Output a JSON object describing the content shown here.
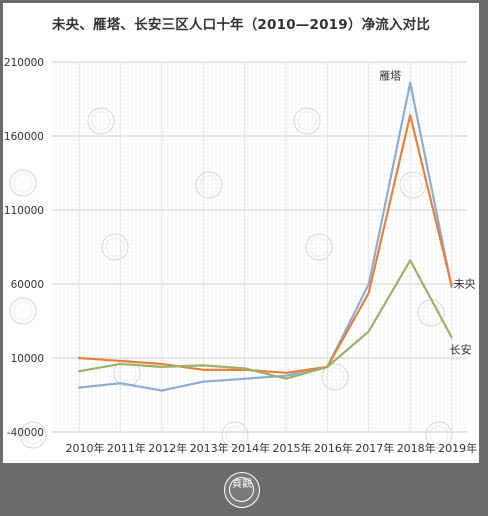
{
  "title": "未央、雁塔、长安三区人口十年（2010—2019）净流入对比",
  "chart_data": {
    "type": "line",
    "title": "未央、雁塔、长安三区人口十年（2010—2019）净流入对比",
    "categories": [
      "2010年",
      "2011年",
      "2012年",
      "2013年",
      "2014年",
      "2015年",
      "2016年",
      "2017年",
      "2018年",
      "2019年"
    ],
    "ylim": [
      -40000,
      210000
    ],
    "yticks": [
      "-40000",
      "10000",
      "60000",
      "110000",
      "160000",
      "210000"
    ],
    "grid": true,
    "series": [
      {
        "name": "雁塔",
        "color": "#8aaed4",
        "values": [
          -10000,
          -7000,
          -12000,
          -6000,
          -4000,
          -2000,
          4000,
          60000,
          196000,
          58000
        ]
      },
      {
        "name": "未央",
        "color": "#e8803c",
        "values": [
          10000,
          8000,
          6000,
          2000,
          2000,
          0,
          4000,
          54000,
          174000,
          59000
        ]
      },
      {
        "name": "长安",
        "color": "#9cb26a",
        "values": [
          1000,
          6000,
          4000,
          5000,
          3000,
          -4000,
          4000,
          28000,
          76000,
          24000
        ]
      }
    ]
  },
  "watermark_glyph": "貞觀"
}
